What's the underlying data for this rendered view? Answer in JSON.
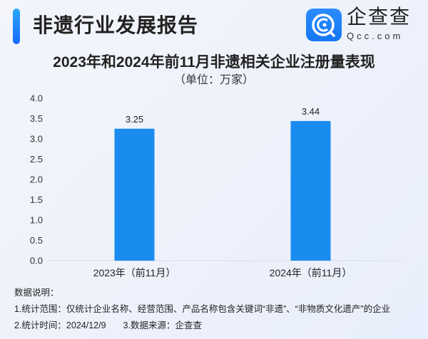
{
  "header": {
    "title": "非遗行业发展报告",
    "logo_cn": "企查查",
    "logo_en": "Qcc.com"
  },
  "chart_data": {
    "type": "bar",
    "title": "2023年和2024年前11月非遗相关企业注册量表现",
    "subtitle": "（单位：万家）",
    "categories": [
      "2023年（前11月）",
      "2024年（前11月）"
    ],
    "values": [
      3.25,
      3.44
    ],
    "data_labels": [
      "3.25",
      "3.44"
    ],
    "ylim": [
      0,
      4.0
    ],
    "yticks": [
      "0.0",
      "0.5",
      "1.0",
      "1.5",
      "2.0",
      "2.5",
      "3.0",
      "3.5",
      "4.0"
    ],
    "grid": false,
    "bar_color": "#1a8cf0"
  },
  "notes": {
    "heading": "数据说明：",
    "line1": "1.统计范围：仅统计企业名称、经营范围、产品名称包含关键词“非遗”、“非物质文化遗产”的企业",
    "line2a": "2.统计时间：2024/12/9",
    "line2b": "3.数据来源：企查查"
  }
}
